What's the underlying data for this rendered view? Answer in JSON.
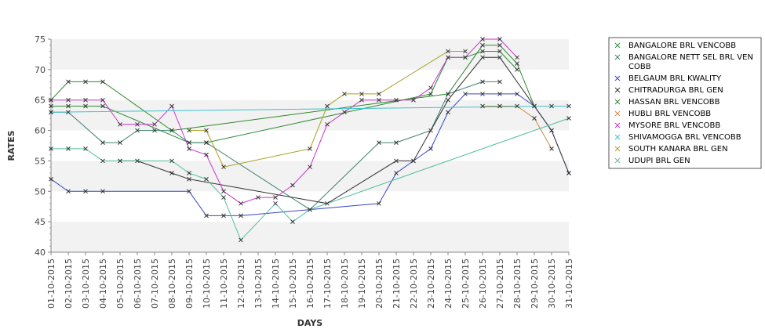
{
  "chart_data": {
    "type": "line",
    "xlabel": "DAYS",
    "ylabel": "RATES",
    "ylim": [
      40,
      75
    ],
    "yticks": [
      40,
      45,
      50,
      55,
      60,
      65,
      70,
      75
    ],
    "grid": "alternating horizontal bands",
    "legend_position": "right",
    "marker": "x",
    "categories": [
      "01-10-2015",
      "02-10-2015",
      "03-10-2015",
      "04-10-2015",
      "05-10-2015",
      "06-10-2015",
      "07-10-2015",
      "08-10-2015",
      "09-10-2015",
      "10-10-2015",
      "11-10-2015",
      "12-10-2015",
      "13-10-2015",
      "14-10-2015",
      "15-10-2015",
      "16-10-2015",
      "17-10-2015",
      "18-10-2015",
      "19-10-2015",
      "20-10-2015",
      "21-10-2015",
      "22-10-2015",
      "23-10-2015",
      "24-10-2015",
      "25-10-2015",
      "26-10-2015",
      "27-10-2015",
      "28-10-2015",
      "29-10-2015",
      "30-10-2015",
      "31-10-2015"
    ],
    "series": [
      {
        "name": "BANGALORE BRL VENCOBB",
        "color": "#2e8b3a",
        "values": [
          64,
          64,
          64,
          64,
          null,
          null,
          null,
          null,
          58,
          58,
          null,
          null,
          null,
          null,
          null,
          null,
          null,
          null,
          null,
          null,
          null,
          null,
          66,
          72,
          72,
          73,
          73,
          70,
          null,
          null,
          null
        ]
      },
      {
        "name": "BANGALORE NETT SEL BRL VENCOBB",
        "color": "#3d8070",
        "values": [
          63,
          63,
          null,
          58,
          58,
          60,
          60,
          60,
          58,
          58,
          null,
          null,
          null,
          null,
          null,
          47,
          null,
          null,
          null,
          58,
          58,
          null,
          60,
          66,
          null,
          68,
          68,
          null,
          null,
          null,
          null
        ]
      },
      {
        "name": "BELGAUM BRL KWALITY",
        "color": "#3a46c8",
        "values": [
          52,
          50,
          50,
          50,
          null,
          null,
          null,
          null,
          50,
          46,
          46,
          46,
          null,
          null,
          null,
          null,
          null,
          null,
          null,
          48,
          53,
          55,
          57,
          63,
          66,
          66,
          66,
          66,
          64,
          60,
          53
        ]
      },
      {
        "name": "CHITRADURGA BRL GEN",
        "color": "#333333",
        "values": [
          null,
          null,
          null,
          null,
          55,
          55,
          null,
          53,
          52,
          null,
          null,
          null,
          null,
          null,
          null,
          null,
          48,
          null,
          null,
          null,
          55,
          55,
          null,
          65,
          null,
          72,
          72,
          null,
          null,
          60,
          53
        ]
      },
      {
        "name": "HASSAN BRL VENCOBB",
        "color": "#2a8a2a",
        "values": [
          65,
          68,
          68,
          68,
          null,
          null,
          null,
          60,
          null,
          null,
          null,
          null,
          null,
          null,
          null,
          null,
          null,
          null,
          null,
          null,
          null,
          null,
          null,
          66,
          null,
          74,
          74,
          71,
          64,
          null,
          null
        ]
      },
      {
        "name": "HUBLI BRL VENCOBB",
        "color": "#d08a40",
        "values": [
          null,
          null,
          null,
          null,
          null,
          null,
          null,
          null,
          null,
          null,
          null,
          null,
          null,
          null,
          null,
          null,
          null,
          null,
          null,
          null,
          null,
          null,
          null,
          null,
          null,
          64,
          64,
          64,
          62,
          57,
          null
        ]
      },
      {
        "name": "MYSORE BRL VENCOBB",
        "color": "#cc33cc",
        "values": [
          65,
          65,
          65,
          65,
          61,
          61,
          61,
          64,
          57,
          56,
          50,
          48,
          49,
          49,
          51,
          54,
          61,
          63,
          65,
          65,
          65,
          65,
          67,
          72,
          72,
          75,
          75,
          72,
          null,
          null,
          null
        ]
      },
      {
        "name": "SHIVAMOGGA BRL VENCOBB",
        "color": "#40c0d0",
        "values": [
          63,
          null,
          null,
          null,
          null,
          null,
          null,
          null,
          null,
          null,
          null,
          null,
          null,
          null,
          null,
          null,
          null,
          null,
          null,
          null,
          null,
          null,
          null,
          null,
          null,
          null,
          null,
          null,
          null,
          64,
          64
        ]
      },
      {
        "name": "SOUTH KANARA BRL GEN",
        "color": "#a8a020",
        "values": [
          null,
          null,
          null,
          null,
          null,
          null,
          null,
          null,
          60,
          60,
          54,
          null,
          null,
          null,
          null,
          57,
          64,
          66,
          66,
          66,
          null,
          null,
          null,
          73,
          73,
          null,
          null,
          null,
          null,
          null,
          null
        ]
      },
      {
        "name": "UDUPI BRL GEN",
        "color": "#50bfa0",
        "values": [
          57,
          57,
          57,
          55,
          55,
          null,
          null,
          55,
          53,
          52,
          49,
          42,
          null,
          48,
          45,
          47,
          null,
          null,
          null,
          null,
          null,
          null,
          null,
          null,
          null,
          null,
          null,
          null,
          null,
          null,
          62
        ]
      }
    ]
  }
}
